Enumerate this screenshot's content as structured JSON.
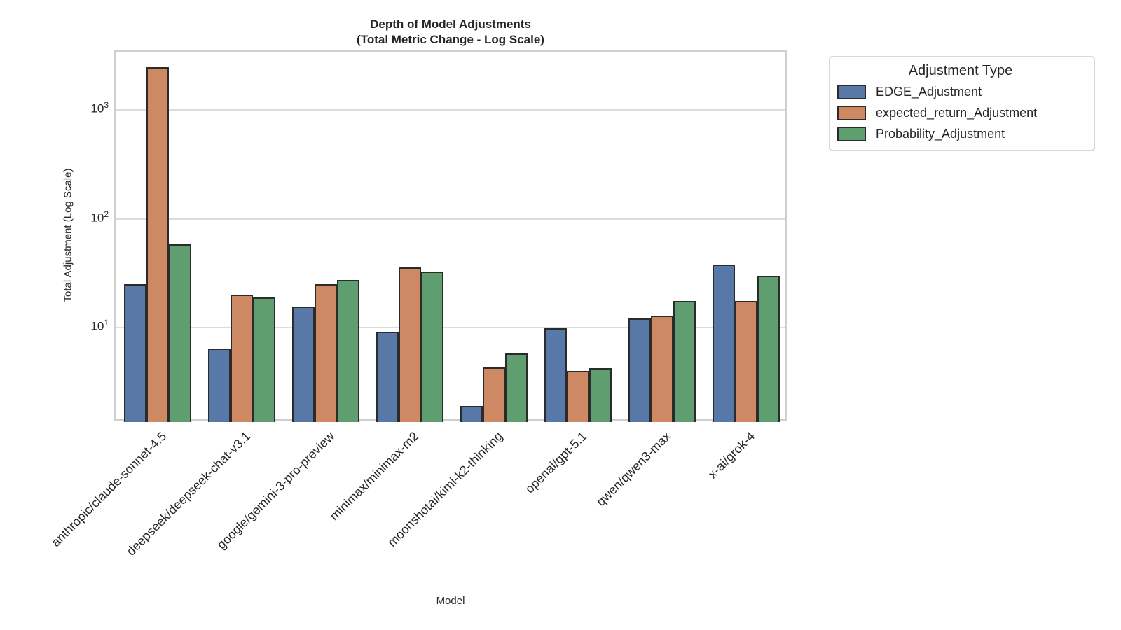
{
  "title": {
    "line1": "Depth of Model Adjustments",
    "line2": "(Total Metric Change - Log Scale)"
  },
  "axes": {
    "x_label": "Model",
    "y_label": "Total Adjustment (Log Scale)"
  },
  "legend": {
    "title": "Adjustment Type",
    "items": [
      {
        "label": "EDGE_Adjustment",
        "color": "#5878a8"
      },
      {
        "label": "expected_return_Adjustment",
        "color": "#cc8963"
      },
      {
        "label": "Probability_Adjustment",
        "color": "#5f9e6e"
      }
    ]
  },
  "colors": {
    "bar_blue": "#5878a8",
    "bar_orange": "#cc8963",
    "bar_green": "#5f9e6e",
    "bar_edge": "#2b2b2b",
    "gridline": "#dcdcdc",
    "spine": "#cfcfcf",
    "text": "#262626"
  },
  "chart_data": {
    "type": "bar",
    "title": "Depth of Model Adjustments (Total Metric Change - Log Scale)",
    "xlabel": "Model",
    "ylabel": "Total Adjustment (Log Scale)",
    "y_scale": "log",
    "ylim": [
      1.35,
      3440
    ],
    "y_ticks": [
      {
        "base": "10",
        "exp": "1",
        "value": 10
      },
      {
        "base": "10",
        "exp": "2",
        "value": 100
      },
      {
        "base": "10",
        "exp": "3",
        "value": 1000
      }
    ],
    "grid": "horizontal-major",
    "legend_position": "outside-upper-right",
    "categories": [
      "anthropic/claude-sonnet-4.5",
      "deepseek/deepseek-chat-v3.1",
      "google/gemini-3-pro-preview",
      "minimax/minimax-m2",
      "moonshotai/kimi-k2-thinking",
      "openai/gpt-5.1",
      "qwen/qwen3-max",
      "x-ai/grok-4"
    ],
    "series": [
      {
        "name": "EDGE_Adjustment",
        "color": "#5878a8",
        "values": [
          25,
          6.4,
          15.5,
          9.1,
          1.9,
          9.8,
          12.2,
          38
        ]
      },
      {
        "name": "expected_return_Adjustment",
        "color": "#cc8963",
        "values": [
          2500,
          20,
          25,
          36,
          4.3,
          4.0,
          12.8,
          17.5
        ]
      },
      {
        "name": "Probability_Adjustment",
        "color": "#5f9e6e",
        "values": [
          58,
          19,
          27.5,
          32.5,
          5.8,
          4.2,
          17.5,
          30
        ]
      }
    ]
  }
}
